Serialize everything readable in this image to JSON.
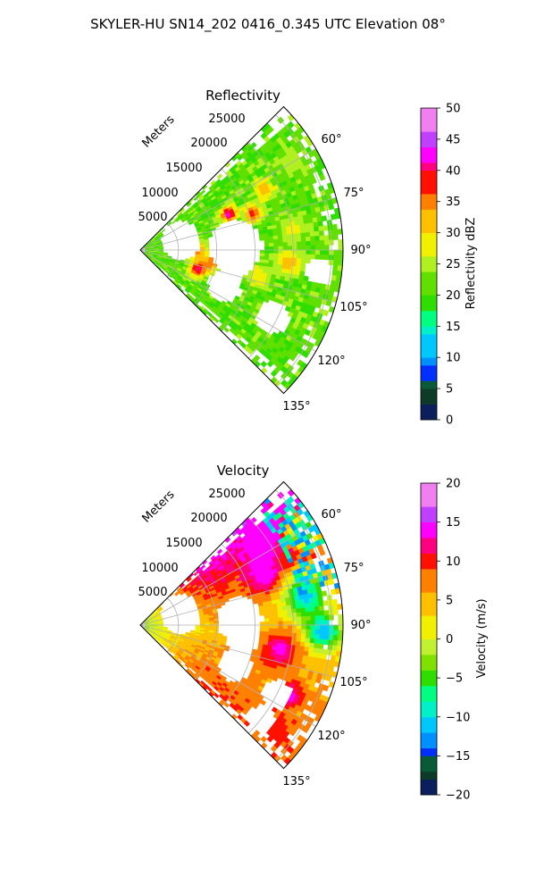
{
  "title": "SKYLER-HU  SN14_202  0416_0.345 UTC Elevation 08°",
  "chart_data": [
    {
      "type": "heatmap",
      "subtype": "polar-sector (PPI radar scan)",
      "title": "Reflectivity",
      "radial_axis_label": "Meters",
      "radial_ticks": [
        "5000",
        "10000",
        "15000",
        "20000",
        "25000"
      ],
      "radial_range": [
        0,
        26500
      ],
      "azimuth_range_deg": [
        45,
        135
      ],
      "azimuth_ticks": [
        "60°",
        "75°",
        "90°",
        "105°",
        "120°",
        "135°"
      ],
      "grid": true,
      "colorbar": {
        "label": "Reflectivity dBZ",
        "range": [
          0,
          50
        ],
        "ticks": [
          "0",
          "5",
          "10",
          "15",
          "20",
          "25",
          "30",
          "35",
          "40",
          "45",
          "50"
        ],
        "stops": [
          {
            "v": 0,
            "color": "#0b1f5c"
          },
          {
            "v": 2,
            "color": "#0e3a2a"
          },
          {
            "v": 4,
            "color": "#0a5a3a"
          },
          {
            "v": 6,
            "color": "#0030ff"
          },
          {
            "v": 8,
            "color": "#0090ff"
          },
          {
            "v": 10,
            "color": "#00c8ff"
          },
          {
            "v": 13,
            "color": "#00f0c8"
          },
          {
            "v": 15,
            "color": "#00ff80"
          },
          {
            "v": 17,
            "color": "#30dd00"
          },
          {
            "v": 20,
            "color": "#60e000"
          },
          {
            "v": 23,
            "color": "#b0f020"
          },
          {
            "v": 26,
            "color": "#f0f000"
          },
          {
            "v": 30,
            "color": "#ffc000"
          },
          {
            "v": 33,
            "color": "#ff8000"
          },
          {
            "v": 36,
            "color": "#ff1000"
          },
          {
            "v": 39,
            "color": "#ff0080"
          },
          {
            "v": 41,
            "color": "#ff00ff"
          },
          {
            "v": 43,
            "color": "#c040ff"
          },
          {
            "v": 46,
            "color": "#f080f0"
          },
          {
            "v": 50,
            "color": "#ffe0ff"
          }
        ]
      },
      "field": {
        "background": 21,
        "cells": [
          {
            "az": 68,
            "r": 12500,
            "v": 42,
            "s": 1200
          },
          {
            "az": 72,
            "r": 15500,
            "v": 38,
            "s": 1300
          },
          {
            "az": 64,
            "r": 18000,
            "v": 33,
            "s": 1500
          },
          {
            "az": 90,
            "r": 7500,
            "v": 37,
            "s": 1200
          },
          {
            "az": 100,
            "r": 9500,
            "v": 35,
            "s": 1500
          },
          {
            "az": 108,
            "r": 8000,
            "v": 40,
            "s": 1300
          },
          {
            "az": 95,
            "r": 19500,
            "v": 32,
            "s": 1800
          },
          {
            "az": 103,
            "r": 16000,
            "v": 30,
            "s": 1600
          },
          {
            "az": 118,
            "r": 19000,
            "v": 28,
            "s": 1800
          },
          {
            "az": 82,
            "r": 20000,
            "v": 27,
            "s": 2000
          },
          {
            "az": 60,
            "r": 23000,
            "v": 25,
            "s": 2000
          }
        ],
        "gaps": [
          {
            "az": 77,
            "r": 5500,
            "s": 2600
          },
          {
            "az": 88,
            "r": 12500,
            "s": 3500
          },
          {
            "az": 96,
            "r": 12500,
            "s": 2500
          },
          {
            "az": 113,
            "r": 12000,
            "s": 2200
          },
          {
            "az": 117,
            "r": 19500,
            "s": 2200
          },
          {
            "az": 97,
            "r": 23500,
            "s": 1700
          }
        ]
      }
    },
    {
      "type": "heatmap",
      "subtype": "polar-sector (PPI radar scan)",
      "title": "Velocity",
      "radial_axis_label": "Meters",
      "radial_ticks": [
        "5000",
        "10000",
        "15000",
        "20000",
        "25000"
      ],
      "radial_range": [
        0,
        26500
      ],
      "azimuth_range_deg": [
        45,
        135
      ],
      "azimuth_ticks": [
        "60°",
        "75°",
        "90°",
        "105°",
        "120°",
        "135°"
      ],
      "grid": true,
      "colorbar": {
        "label": "Velocity (m/s)",
        "range": [
          -20,
          20
        ],
        "ticks": [
          "−20",
          "−15",
          "−10",
          "−5",
          "0",
          "5",
          "10",
          "15",
          "20"
        ],
        "stops": [
          {
            "v": -20,
            "color": "#0b1f5c"
          },
          {
            "v": -18.5,
            "color": "#0e3a2a"
          },
          {
            "v": -17,
            "color": "#0a5a3a"
          },
          {
            "v": -15.5,
            "color": "#0030ff"
          },
          {
            "v": -14,
            "color": "#0090ff"
          },
          {
            "v": -12,
            "color": "#00c8ff"
          },
          {
            "v": -10,
            "color": "#00f0c8"
          },
          {
            "v": -8,
            "color": "#00ff80"
          },
          {
            "v": -6,
            "color": "#30dd00"
          },
          {
            "v": -4,
            "color": "#80e000"
          },
          {
            "v": -2,
            "color": "#c0f030"
          },
          {
            "v": 0,
            "color": "#f0f000"
          },
          {
            "v": 3,
            "color": "#ffc000"
          },
          {
            "v": 6,
            "color": "#ff8000"
          },
          {
            "v": 9,
            "color": "#ff1000"
          },
          {
            "v": 11,
            "color": "#ff0080"
          },
          {
            "v": 13,
            "color": "#ff00ff"
          },
          {
            "v": 15,
            "color": "#c040ff"
          },
          {
            "v": 17,
            "color": "#f080f0"
          },
          {
            "v": 20,
            "color": "#ffe0ff"
          }
        ]
      },
      "field": {
        "az_profile": [
          {
            "az": 45,
            "v": 14
          },
          {
            "az": 60,
            "v": 11
          },
          {
            "az": 72,
            "v": 8
          },
          {
            "az": 85,
            "v": 4
          },
          {
            "az": 95,
            "v": 3
          },
          {
            "az": 110,
            "v": 6
          },
          {
            "az": 125,
            "v": 8
          },
          {
            "az": 135,
            "v": 9
          }
        ],
        "near_profile": [
          {
            "r": 0,
            "v": -3
          },
          {
            "r": 3500,
            "v": 0
          },
          {
            "r": 7000,
            "v": 3
          },
          {
            "r": 10000,
            "v": 7
          },
          {
            "r": 12500,
            "v": 10
          }
        ],
        "cells": [
          {
            "az": 55,
            "r": 19500,
            "v": 15,
            "s": 3000
          },
          {
            "az": 68,
            "r": 17500,
            "v": 15,
            "s": 2500
          },
          {
            "az": 80,
            "r": 22000,
            "v": -11,
            "s": 3200
          },
          {
            "az": 92,
            "r": 24000,
            "v": -12,
            "s": 2500
          },
          {
            "az": 60,
            "r": 24500,
            "v": -12,
            "s": 2000
          },
          {
            "az": 100,
            "r": 18500,
            "v": 14,
            "s": 2800
          },
          {
            "az": 115,
            "r": 21500,
            "v": 14,
            "s": 2000
          },
          {
            "az": 85,
            "r": 12500,
            "v": 9,
            "s": 2500
          },
          {
            "az": 105,
            "r": 14500,
            "v": 9,
            "s": 2500
          },
          {
            "az": 128,
            "r": 22500,
            "v": 11,
            "s": 2000
          }
        ],
        "gaps": [
          {
            "az": 87,
            "r": 13000,
            "s": 3000
          },
          {
            "az": 97,
            "r": 13500,
            "s": 2300
          },
          {
            "az": 113,
            "r": 13500,
            "s": 2200
          },
          {
            "az": 117,
            "r": 20000,
            "s": 2000
          },
          {
            "az": 128,
            "r": 20000,
            "s": 1800
          },
          {
            "az": 75,
            "r": 5500,
            "s": 2600
          }
        ]
      }
    }
  ]
}
